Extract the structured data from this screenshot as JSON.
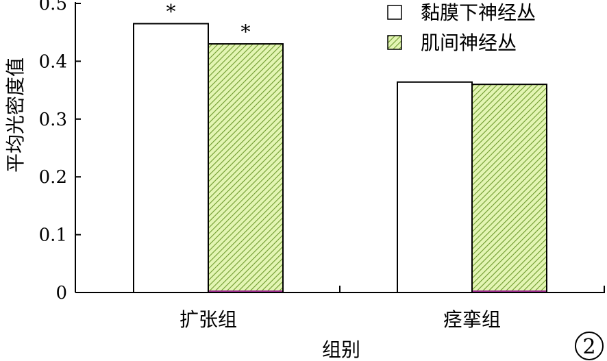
{
  "chart_data": {
    "type": "bar",
    "title": "",
    "xlabel": "组别",
    "ylabel": "平均光密度值",
    "ylim": [
      0,
      0.5
    ],
    "yticks": [
      "0",
      "0.1",
      "0.2",
      "0.3",
      "0.4",
      "0.5"
    ],
    "ytick_values": [
      0,
      0.1,
      0.2,
      0.3,
      0.4,
      0.5
    ],
    "categories": [
      "扩张组",
      "痉挛组"
    ],
    "series": [
      {
        "name": "黏膜下神经丛",
        "values": [
          0.465,
          0.364
        ],
        "fill": "white"
      },
      {
        "name": "肌间神经丛",
        "values": [
          0.43,
          0.36
        ],
        "fill": "green-magenta-hatch"
      }
    ],
    "annotations": [
      {
        "text": "*",
        "category": "扩张组",
        "series": "黏膜下神经丛"
      },
      {
        "text": "*",
        "category": "扩张组",
        "series": "肌间神经丛"
      }
    ],
    "legend_position": "top-right",
    "panel_label": "2",
    "grid": false
  },
  "colors": {
    "hatch_light": "#d8f0a0",
    "hatch_dark": "#7a9a3a",
    "hatch_base_line": "#9b2d8f",
    "axis": "#000000"
  }
}
